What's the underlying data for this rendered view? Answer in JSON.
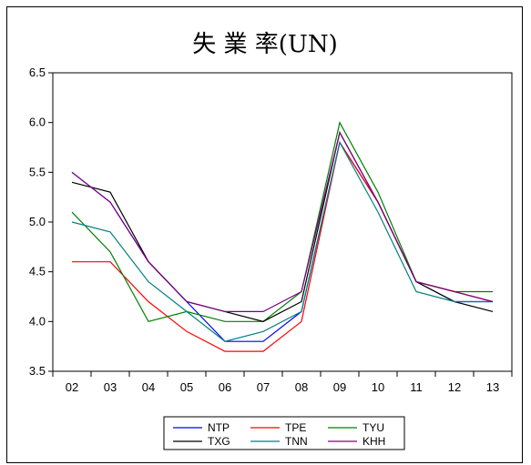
{
  "chart_data": {
    "type": "line",
    "title": "失 業 率(UN)",
    "xlabel": "",
    "ylabel": "",
    "categories": [
      "02",
      "03",
      "04",
      "05",
      "06",
      "07",
      "08",
      "09",
      "10",
      "11",
      "12",
      "13"
    ],
    "ylim": [
      3.5,
      6.5
    ],
    "yticks": [
      "3.5",
      "4.0",
      "4.5",
      "5.0",
      "5.5",
      "6.0",
      "6.5"
    ],
    "grid": false,
    "legend_position": "bottom",
    "series": [
      {
        "name": "NTP",
        "color": "#0000ff",
        "values": [
          5.5,
          5.2,
          4.6,
          4.2,
          3.8,
          3.8,
          4.1,
          5.8,
          5.2,
          4.4,
          4.2,
          4.2
        ]
      },
      {
        "name": "TPE",
        "color": "#ff0000",
        "values": [
          4.6,
          4.6,
          4.2,
          3.9,
          3.7,
          3.7,
          4.0,
          5.8,
          5.2,
          4.4,
          4.3,
          4.2
        ]
      },
      {
        "name": "TYU",
        "color": "#008000",
        "values": [
          5.1,
          4.7,
          4.0,
          4.1,
          4.0,
          4.0,
          4.3,
          6.0,
          5.3,
          4.4,
          4.3,
          4.3
        ]
      },
      {
        "name": "TXG",
        "color": "#000000",
        "values": [
          5.4,
          5.3,
          4.6,
          4.2,
          4.1,
          4.0,
          4.2,
          5.9,
          5.2,
          4.4,
          4.2,
          4.1
        ]
      },
      {
        "name": "TNN",
        "color": "#008080",
        "values": [
          5.0,
          4.9,
          4.4,
          4.1,
          3.8,
          3.9,
          4.1,
          5.8,
          5.1,
          4.3,
          4.2,
          4.2
        ]
      },
      {
        "name": "KHH",
        "color": "#800080",
        "values": [
          5.5,
          5.2,
          4.6,
          4.2,
          4.1,
          4.1,
          4.3,
          5.9,
          5.2,
          4.4,
          4.3,
          4.2
        ]
      }
    ]
  }
}
